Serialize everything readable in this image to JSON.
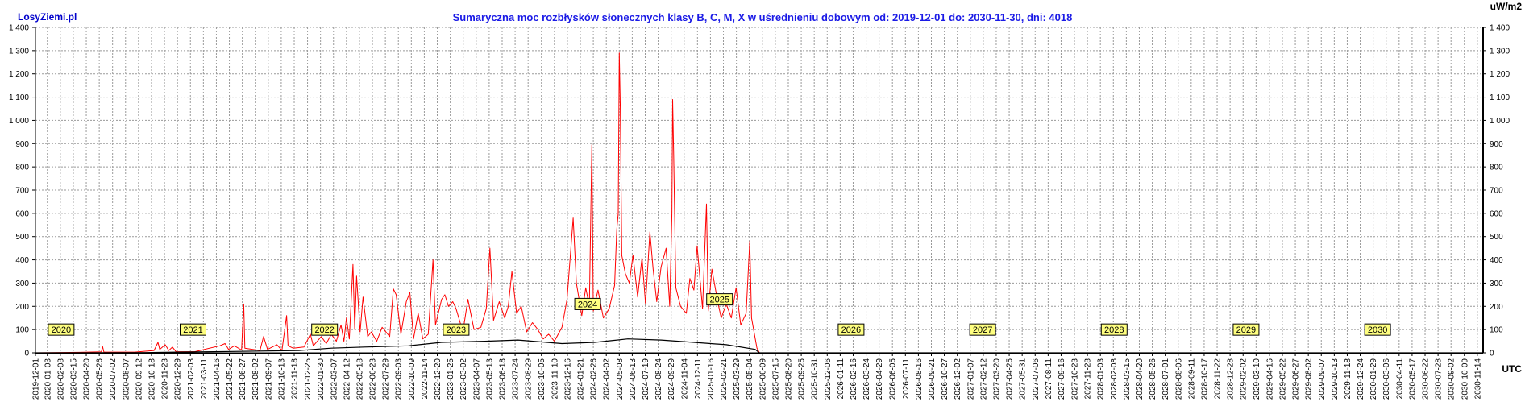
{
  "brand": "LosyZiemi.pl",
  "chart_data": {
    "type": "line",
    "title": "Sumaryczna moc rozbłysków słonecznych klasy B, C, M, X w uśrednieniu dobowym od: 2019-12-01 do: 2030-11-30, dni: 4018",
    "ylabel": "uW/m2",
    "xlabel": "UTC",
    "ylim": [
      0,
      1400
    ],
    "xlim": [
      "2019-12-01",
      "2030-11-30"
    ],
    "grid": true,
    "yticks": [
      0,
      100,
      200,
      300,
      400,
      500,
      600,
      700,
      800,
      900,
      1000,
      1100,
      1200,
      1300,
      1400
    ],
    "ytick_labels": [
      "0",
      "100",
      "200",
      "300",
      "400",
      "500",
      "600",
      "700",
      "800",
      "900",
      "1 000",
      "1 100",
      "1 200",
      "1 300",
      "1 400"
    ],
    "xtick_labels": [
      "2019-12-01",
      "2020-01-03",
      "2020-02-08",
      "2020-03-15",
      "2020-04-20",
      "2020-05-26",
      "2020-07-02",
      "2020-08-07",
      "2020-09-12",
      "2020-10-18",
      "2020-11-23",
      "2020-12-29",
      "2021-02-03",
      "2021-03-11",
      "2021-04-16",
      "2021-05-22",
      "2021-06-27",
      "2021-08-02",
      "2021-09-07",
      "2021-10-13",
      "2021-11-18",
      "2021-12-25",
      "2022-01-30",
      "2022-03-07",
      "2022-04-12",
      "2022-05-18",
      "2022-06-23",
      "2022-07-29",
      "2022-09-03",
      "2022-10-09",
      "2022-11-14",
      "2022-12-20",
      "2023-01-25",
      "2023-03-02",
      "2023-04-07",
      "2023-05-13",
      "2023-06-18",
      "2023-07-24",
      "2023-08-29",
      "2023-10-05",
      "2023-11-10",
      "2023-12-16",
      "2024-01-21",
      "2024-02-26",
      "2024-04-02",
      "2024-05-08",
      "2024-06-13",
      "2024-07-19",
      "2024-08-24",
      "2024-09-29",
      "2024-11-04",
      "2024-12-11",
      "2025-01-16",
      "2025-02-21",
      "2025-03-29",
      "2025-05-04",
      "2025-06-09",
      "2025-07-15",
      "2025-08-20",
      "2025-09-25",
      "2025-10-31",
      "2025-12-06",
      "2026-01-11",
      "2026-02-16",
      "2026-03-24",
      "2026-04-29",
      "2026-06-05",
      "2026-07-11",
      "2026-08-16",
      "2026-09-21",
      "2026-10-27",
      "2026-12-02",
      "2027-01-07",
      "2027-02-12",
      "2027-03-20",
      "2027-04-25",
      "2027-05-31",
      "2027-07-06",
      "2027-08-11",
      "2027-09-16",
      "2027-10-23",
      "2027-11-28",
      "2028-01-03",
      "2028-02-08",
      "2028-03-15",
      "2028-04-20",
      "2028-05-26",
      "2028-07-01",
      "2028-08-06",
      "2028-09-11",
      "2028-10-17",
      "2028-11-22",
      "2028-12-28",
      "2029-02-02",
      "2029-03-10",
      "2029-04-16",
      "2029-05-22",
      "2029-06-27",
      "2029-08-02",
      "2029-09-07",
      "2029-10-13",
      "2029-11-18",
      "2029-12-24",
      "2030-01-29",
      "2030-03-06",
      "2030-04-11",
      "2030-05-17",
      "2030-06-22",
      "2030-07-28",
      "2030-09-02",
      "2030-10-09",
      "2030-11-14"
    ],
    "year_markers": [
      {
        "label": "2020",
        "date": "2020-01-01"
      },
      {
        "label": "2021",
        "date": "2021-01-01"
      },
      {
        "label": "2022",
        "date": "2022-01-01"
      },
      {
        "label": "2023",
        "date": "2023-01-01"
      },
      {
        "label": "2024",
        "date": "2024-01-01"
      },
      {
        "label": "2025",
        "date": "2025-01-01"
      },
      {
        "label": "2026",
        "date": "2026-01-01"
      },
      {
        "label": "2027",
        "date": "2027-01-01"
      },
      {
        "label": "2028",
        "date": "2028-01-01"
      },
      {
        "label": "2029",
        "date": "2029-01-01"
      },
      {
        "label": "2030",
        "date": "2030-01-01"
      }
    ],
    "series": [
      {
        "color": "#ff0000",
        "points": [
          [
            "2019-12-01",
            0
          ],
          [
            "2020-04-01",
            2
          ],
          [
            "2020-06-01",
            4
          ],
          [
            "2020-06-04",
            28
          ],
          [
            "2020-06-08",
            3
          ],
          [
            "2020-09-01",
            3
          ],
          [
            "2020-10-25",
            10
          ],
          [
            "2020-11-05",
            45
          ],
          [
            "2020-11-10",
            15
          ],
          [
            "2020-11-25",
            35
          ],
          [
            "2020-12-05",
            10
          ],
          [
            "2020-12-15",
            25
          ],
          [
            "2020-12-25",
            5
          ],
          [
            "2021-02-15",
            5
          ],
          [
            "2021-04-25",
            30
          ],
          [
            "2021-05-10",
            40
          ],
          [
            "2021-05-20",
            15
          ],
          [
            "2021-06-05",
            30
          ],
          [
            "2021-06-25",
            12
          ],
          [
            "2021-07-01",
            210
          ],
          [
            "2021-07-04",
            20
          ],
          [
            "2021-08-15",
            10
          ],
          [
            "2021-08-25",
            70
          ],
          [
            "2021-09-05",
            15
          ],
          [
            "2021-10-01",
            35
          ],
          [
            "2021-10-15",
            10
          ],
          [
            "2021-10-28",
            160
          ],
          [
            "2021-11-01",
            30
          ],
          [
            "2021-11-15",
            20
          ],
          [
            "2021-12-15",
            25
          ],
          [
            "2022-01-02",
            80
          ],
          [
            "2022-01-10",
            30
          ],
          [
            "2022-02-01",
            70
          ],
          [
            "2022-02-15",
            40
          ],
          [
            "2022-03-01",
            80
          ],
          [
            "2022-03-15",
            50
          ],
          [
            "2022-03-28",
            120
          ],
          [
            "2022-04-05",
            50
          ],
          [
            "2022-04-12",
            150
          ],
          [
            "2022-04-20",
            60
          ],
          [
            "2022-04-30",
            380
          ],
          [
            "2022-05-05",
            100
          ],
          [
            "2022-05-10",
            330
          ],
          [
            "2022-05-20",
            90
          ],
          [
            "2022-05-28",
            240
          ],
          [
            "2022-06-10",
            70
          ],
          [
            "2022-06-20",
            90
          ],
          [
            "2022-07-05",
            50
          ],
          [
            "2022-07-20",
            110
          ],
          [
            "2022-08-10",
            70
          ],
          [
            "2022-08-20",
            275
          ],
          [
            "2022-08-28",
            250
          ],
          [
            "2022-09-10",
            80
          ],
          [
            "2022-09-25",
            220
          ],
          [
            "2022-10-05",
            260
          ],
          [
            "2022-10-15",
            60
          ],
          [
            "2022-10-28",
            170
          ],
          [
            "2022-11-10",
            60
          ],
          [
            "2022-11-25",
            80
          ],
          [
            "2022-12-08",
            400
          ],
          [
            "2022-12-15",
            120
          ],
          [
            "2023-01-01",
            230
          ],
          [
            "2023-01-10",
            250
          ],
          [
            "2023-01-20",
            200
          ],
          [
            "2023-02-01",
            220
          ],
          [
            "2023-02-10",
            190
          ],
          [
            "2023-03-01",
            90
          ],
          [
            "2023-03-15",
            230
          ],
          [
            "2023-04-01",
            100
          ],
          [
            "2023-04-20",
            110
          ],
          [
            "2023-05-05",
            190
          ],
          [
            "2023-05-15",
            450
          ],
          [
            "2023-05-25",
            140
          ],
          [
            "2023-06-10",
            220
          ],
          [
            "2023-06-25",
            150
          ],
          [
            "2023-07-05",
            200
          ],
          [
            "2023-07-15",
            350
          ],
          [
            "2023-07-28",
            170
          ],
          [
            "2023-08-10",
            200
          ],
          [
            "2023-08-25",
            90
          ],
          [
            "2023-09-10",
            130
          ],
          [
            "2023-09-25",
            100
          ],
          [
            "2023-10-10",
            60
          ],
          [
            "2023-10-25",
            80
          ],
          [
            "2023-11-10",
            50
          ],
          [
            "2023-12-01",
            110
          ],
          [
            "2023-12-15",
            230
          ],
          [
            "2024-01-01",
            580
          ],
          [
            "2024-01-10",
            300
          ],
          [
            "2024-01-25",
            160
          ],
          [
            "2024-02-05",
            280
          ],
          [
            "2024-02-15",
            200
          ],
          [
            "2024-02-22",
            895
          ],
          [
            "2024-02-26",
            180
          ],
          [
            "2024-03-10",
            270
          ],
          [
            "2024-03-25",
            150
          ],
          [
            "2024-04-10",
            190
          ],
          [
            "2024-04-25",
            290
          ],
          [
            "2024-05-01",
            530
          ],
          [
            "2024-05-05",
            600
          ],
          [
            "2024-05-08",
            1290
          ],
          [
            "2024-05-11",
            1050
          ],
          [
            "2024-05-15",
            420
          ],
          [
            "2024-05-25",
            340
          ],
          [
            "2024-06-05",
            300
          ],
          [
            "2024-06-15",
            420
          ],
          [
            "2024-06-28",
            240
          ],
          [
            "2024-07-10",
            410
          ],
          [
            "2024-07-20",
            210
          ],
          [
            "2024-08-01",
            520
          ],
          [
            "2024-08-10",
            360
          ],
          [
            "2024-08-20",
            220
          ],
          [
            "2024-09-01",
            370
          ],
          [
            "2024-09-15",
            450
          ],
          [
            "2024-09-25",
            200
          ],
          [
            "2024-10-01",
            600
          ],
          [
            "2024-10-03",
            1090
          ],
          [
            "2024-10-06",
            850
          ],
          [
            "2024-10-12",
            280
          ],
          [
            "2024-10-25",
            200
          ],
          [
            "2024-11-10",
            170
          ],
          [
            "2024-11-20",
            320
          ],
          [
            "2024-12-01",
            270
          ],
          [
            "2024-12-10",
            460
          ],
          [
            "2024-12-25",
            190
          ],
          [
            "2025-01-05",
            640
          ],
          [
            "2025-01-10",
            180
          ],
          [
            "2025-01-20",
            360
          ],
          [
            "2025-02-05",
            220
          ],
          [
            "2025-02-15",
            150
          ],
          [
            "2025-03-01",
            210
          ],
          [
            "2025-03-15",
            150
          ],
          [
            "2025-03-28",
            280
          ],
          [
            "2025-04-10",
            120
          ],
          [
            "2025-04-25",
            170
          ],
          [
            "2025-05-05",
            480
          ],
          [
            "2025-05-10",
            150
          ],
          [
            "2025-05-18",
            80
          ],
          [
            "2025-05-25",
            20
          ],
          [
            "2025-06-01",
            0
          ],
          [
            "2030-11-30",
            0
          ]
        ]
      },
      {
        "color": "#000000",
        "points": [
          [
            "2019-12-01",
            0
          ],
          [
            "2020-10-01",
            1
          ],
          [
            "2021-01-01",
            3
          ],
          [
            "2021-06-01",
            6
          ],
          [
            "2021-12-01",
            10
          ],
          [
            "2022-03-01",
            20
          ],
          [
            "2022-06-01",
            25
          ],
          [
            "2022-10-01",
            30
          ],
          [
            "2023-01-01",
            45
          ],
          [
            "2023-05-01",
            50
          ],
          [
            "2023-08-01",
            55
          ],
          [
            "2023-12-01",
            40
          ],
          [
            "2024-03-01",
            45
          ],
          [
            "2024-06-01",
            60
          ],
          [
            "2024-09-01",
            55
          ],
          [
            "2024-12-01",
            45
          ],
          [
            "2025-03-01",
            35
          ],
          [
            "2025-05-20",
            15
          ],
          [
            "2025-06-01",
            0
          ],
          [
            "2030-11-30",
            0
          ]
        ]
      }
    ]
  }
}
